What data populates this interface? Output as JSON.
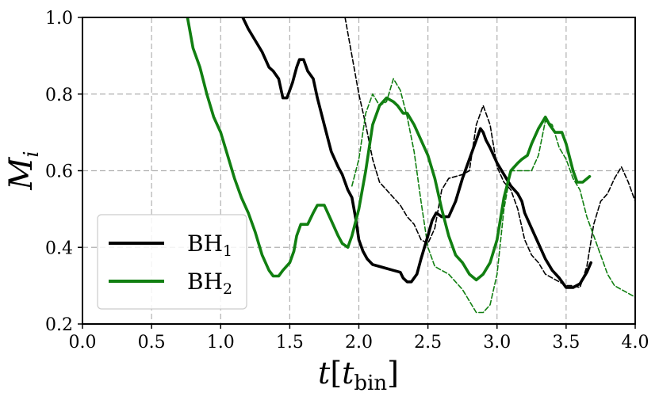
{
  "chart_data": {
    "type": "line",
    "title": "",
    "xlabel": {
      "main": "t",
      "bracket_open": "[",
      "sym": "t",
      "sub": "bin",
      "bracket_close": "]"
    },
    "ylabel": {
      "main": "M",
      "sub": "i"
    },
    "xlim": [
      0.0,
      4.0
    ],
    "ylim": [
      0.2,
      1.0
    ],
    "x_ticks": [
      0.0,
      0.5,
      1.0,
      1.5,
      2.0,
      2.5,
      3.0,
      3.5,
      4.0
    ],
    "x_tick_labels": [
      "0.0",
      "0.5",
      "1.0",
      "1.5",
      "2.0",
      "2.5",
      "3.0",
      "3.5",
      "4.0"
    ],
    "y_ticks": [
      0.2,
      0.4,
      0.6,
      0.8,
      1.0
    ],
    "y_tick_labels": [
      "0.2",
      "0.4",
      "0.6",
      "0.8",
      "1.0"
    ],
    "grid": true,
    "legend": {
      "placement": "lower-left",
      "entries": [
        {
          "series": "BH1",
          "name": "BH",
          "sub": "1"
        },
        {
          "series": "BH2",
          "name": "BH",
          "sub": "2"
        }
      ]
    },
    "series": [
      {
        "name": "BH1",
        "color": "#000000",
        "style": "solid",
        "points": [
          [
            1.16,
            1.0
          ],
          [
            1.2,
            0.97
          ],
          [
            1.25,
            0.94
          ],
          [
            1.3,
            0.91
          ],
          [
            1.35,
            0.87
          ],
          [
            1.38,
            0.86
          ],
          [
            1.42,
            0.84
          ],
          [
            1.45,
            0.79
          ],
          [
            1.48,
            0.79
          ],
          [
            1.52,
            0.83
          ],
          [
            1.55,
            0.87
          ],
          [
            1.57,
            0.89
          ],
          [
            1.6,
            0.89
          ],
          [
            1.63,
            0.86
          ],
          [
            1.67,
            0.84
          ],
          [
            1.7,
            0.79
          ],
          [
            1.75,
            0.72
          ],
          [
            1.8,
            0.65
          ],
          [
            1.85,
            0.61
          ],
          [
            1.88,
            0.59
          ],
          [
            1.92,
            0.55
          ],
          [
            1.95,
            0.53
          ],
          [
            1.98,
            0.47
          ],
          [
            2.0,
            0.42
          ],
          [
            2.03,
            0.39
          ],
          [
            2.06,
            0.37
          ],
          [
            2.1,
            0.355
          ],
          [
            2.15,
            0.35
          ],
          [
            2.2,
            0.345
          ],
          [
            2.25,
            0.34
          ],
          [
            2.3,
            0.335
          ],
          [
            2.32,
            0.32
          ],
          [
            2.35,
            0.31
          ],
          [
            2.38,
            0.31
          ],
          [
            2.42,
            0.33
          ],
          [
            2.45,
            0.37
          ],
          [
            2.5,
            0.43
          ],
          [
            2.53,
            0.47
          ],
          [
            2.56,
            0.49
          ],
          [
            2.6,
            0.48
          ],
          [
            2.65,
            0.48
          ],
          [
            2.7,
            0.52
          ],
          [
            2.75,
            0.58
          ],
          [
            2.8,
            0.63
          ],
          [
            2.85,
            0.68
          ],
          [
            2.88,
            0.71
          ],
          [
            2.9,
            0.7
          ],
          [
            2.92,
            0.68
          ],
          [
            2.95,
            0.66
          ],
          [
            3.0,
            0.62
          ],
          [
            3.05,
            0.59
          ],
          [
            3.1,
            0.56
          ],
          [
            3.15,
            0.54
          ],
          [
            3.18,
            0.52
          ],
          [
            3.2,
            0.49
          ],
          [
            3.25,
            0.45
          ],
          [
            3.3,
            0.41
          ],
          [
            3.35,
            0.37
          ],
          [
            3.4,
            0.34
          ],
          [
            3.45,
            0.32
          ],
          [
            3.5,
            0.295
          ],
          [
            3.55,
            0.295
          ],
          [
            3.6,
            0.305
          ],
          [
            3.65,
            0.335
          ],
          [
            3.68,
            0.36
          ]
        ]
      },
      {
        "name": "BH2",
        "color": "#117f11",
        "style": "solid",
        "points": [
          [
            0.76,
            1.0
          ],
          [
            0.8,
            0.92
          ],
          [
            0.85,
            0.87
          ],
          [
            0.9,
            0.8
          ],
          [
            0.95,
            0.74
          ],
          [
            1.0,
            0.7
          ],
          [
            1.05,
            0.64
          ],
          [
            1.1,
            0.58
          ],
          [
            1.15,
            0.53
          ],
          [
            1.2,
            0.49
          ],
          [
            1.25,
            0.44
          ],
          [
            1.3,
            0.38
          ],
          [
            1.35,
            0.34
          ],
          [
            1.38,
            0.325
          ],
          [
            1.42,
            0.325
          ],
          [
            1.45,
            0.34
          ],
          [
            1.5,
            0.36
          ],
          [
            1.53,
            0.39
          ],
          [
            1.55,
            0.43
          ],
          [
            1.58,
            0.46
          ],
          [
            1.6,
            0.46
          ],
          [
            1.63,
            0.46
          ],
          [
            1.67,
            0.49
          ],
          [
            1.7,
            0.51
          ],
          [
            1.75,
            0.51
          ],
          [
            1.8,
            0.47
          ],
          [
            1.85,
            0.43
          ],
          [
            1.88,
            0.41
          ],
          [
            1.92,
            0.4
          ],
          [
            1.95,
            0.43
          ],
          [
            2.0,
            0.5
          ],
          [
            2.05,
            0.6
          ],
          [
            2.1,
            0.72
          ],
          [
            2.15,
            0.77
          ],
          [
            2.2,
            0.79
          ],
          [
            2.25,
            0.78
          ],
          [
            2.28,
            0.77
          ],
          [
            2.32,
            0.75
          ],
          [
            2.35,
            0.75
          ],
          [
            2.4,
            0.72
          ],
          [
            2.45,
            0.68
          ],
          [
            2.5,
            0.64
          ],
          [
            2.55,
            0.58
          ],
          [
            2.6,
            0.5
          ],
          [
            2.65,
            0.43
          ],
          [
            2.7,
            0.38
          ],
          [
            2.75,
            0.36
          ],
          [
            2.8,
            0.33
          ],
          [
            2.85,
            0.315
          ],
          [
            2.9,
            0.33
          ],
          [
            2.95,
            0.36
          ],
          [
            3.0,
            0.42
          ],
          [
            3.05,
            0.53
          ],
          [
            3.1,
            0.6
          ],
          [
            3.15,
            0.62
          ],
          [
            3.18,
            0.63
          ],
          [
            3.22,
            0.64
          ],
          [
            3.25,
            0.67
          ],
          [
            3.3,
            0.71
          ],
          [
            3.35,
            0.74
          ],
          [
            3.38,
            0.72
          ],
          [
            3.42,
            0.7
          ],
          [
            3.47,
            0.7
          ],
          [
            3.5,
            0.67
          ],
          [
            3.55,
            0.6
          ],
          [
            3.58,
            0.57
          ],
          [
            3.62,
            0.57
          ],
          [
            3.67,
            0.585
          ]
        ]
      },
      {
        "name": "BH1 (dashed)",
        "color": "#000000",
        "style": "dashed",
        "points": [
          [
            1.9,
            1.0
          ],
          [
            1.95,
            0.9
          ],
          [
            2.0,
            0.8
          ],
          [
            2.05,
            0.72
          ],
          [
            2.1,
            0.63
          ],
          [
            2.15,
            0.57
          ],
          [
            2.2,
            0.55
          ],
          [
            2.25,
            0.53
          ],
          [
            2.3,
            0.51
          ],
          [
            2.35,
            0.48
          ],
          [
            2.4,
            0.46
          ],
          [
            2.45,
            0.42
          ],
          [
            2.5,
            0.41
          ],
          [
            2.55,
            0.45
          ],
          [
            2.6,
            0.55
          ],
          [
            2.65,
            0.58
          ],
          [
            2.7,
            0.585
          ],
          [
            2.75,
            0.59
          ],
          [
            2.8,
            0.6
          ],
          [
            2.85,
            0.72
          ],
          [
            2.9,
            0.77
          ],
          [
            2.95,
            0.72
          ],
          [
            3.0,
            0.61
          ],
          [
            3.05,
            0.57
          ],
          [
            3.1,
            0.55
          ],
          [
            3.15,
            0.5
          ],
          [
            3.2,
            0.42
          ],
          [
            3.25,
            0.38
          ],
          [
            3.3,
            0.36
          ],
          [
            3.35,
            0.33
          ],
          [
            3.4,
            0.32
          ],
          [
            3.45,
            0.31
          ],
          [
            3.5,
            0.3
          ],
          [
            3.55,
            0.3
          ],
          [
            3.6,
            0.295
          ],
          [
            3.65,
            0.35
          ],
          [
            3.7,
            0.46
          ],
          [
            3.75,
            0.52
          ],
          [
            3.8,
            0.54
          ],
          [
            3.85,
            0.58
          ],
          [
            3.9,
            0.61
          ],
          [
            3.95,
            0.57
          ],
          [
            4.0,
            0.52
          ]
        ]
      },
      {
        "name": "BH2 (dashed)",
        "color": "#117f11",
        "style": "dashed",
        "points": [
          [
            1.95,
            0.56
          ],
          [
            2.0,
            0.63
          ],
          [
            2.05,
            0.75
          ],
          [
            2.1,
            0.8
          ],
          [
            2.15,
            0.77
          ],
          [
            2.2,
            0.78
          ],
          [
            2.25,
            0.84
          ],
          [
            2.3,
            0.81
          ],
          [
            2.35,
            0.74
          ],
          [
            2.4,
            0.65
          ],
          [
            2.45,
            0.52
          ],
          [
            2.5,
            0.4
          ],
          [
            2.55,
            0.35
          ],
          [
            2.6,
            0.34
          ],
          [
            2.65,
            0.33
          ],
          [
            2.7,
            0.31
          ],
          [
            2.75,
            0.29
          ],
          [
            2.8,
            0.26
          ],
          [
            2.85,
            0.23
          ],
          [
            2.9,
            0.23
          ],
          [
            2.95,
            0.25
          ],
          [
            3.0,
            0.33
          ],
          [
            3.05,
            0.5
          ],
          [
            3.1,
            0.6
          ],
          [
            3.15,
            0.6
          ],
          [
            3.2,
            0.6
          ],
          [
            3.25,
            0.6
          ],
          [
            3.3,
            0.64
          ],
          [
            3.35,
            0.73
          ],
          [
            3.4,
            0.72
          ],
          [
            3.45,
            0.66
          ],
          [
            3.5,
            0.63
          ],
          [
            3.55,
            0.58
          ],
          [
            3.6,
            0.55
          ],
          [
            3.65,
            0.48
          ],
          [
            3.7,
            0.43
          ],
          [
            3.75,
            0.38
          ],
          [
            3.8,
            0.33
          ],
          [
            3.85,
            0.3
          ],
          [
            3.9,
            0.29
          ],
          [
            3.95,
            0.28
          ],
          [
            4.0,
            0.27
          ]
        ]
      }
    ]
  }
}
